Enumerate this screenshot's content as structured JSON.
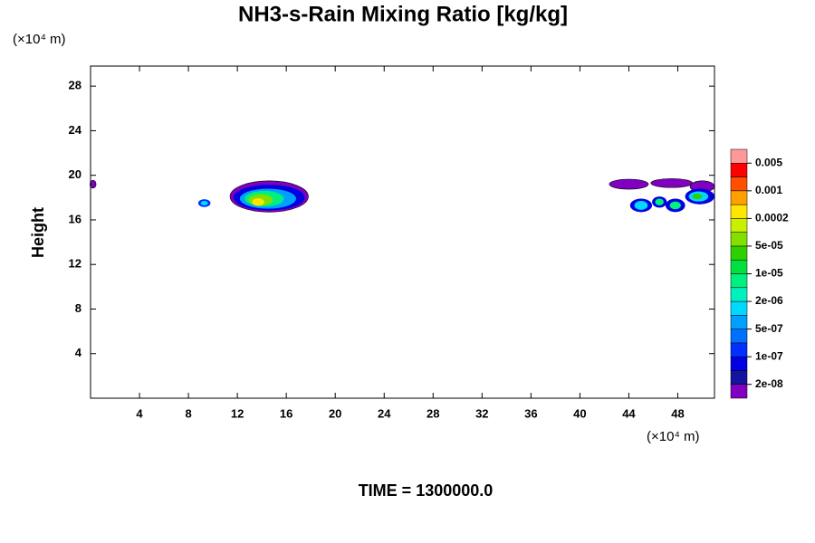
{
  "chart_data": {
    "type": "contour",
    "title": "NH3-s-Rain Mixing Ratio [kg/kg]",
    "y_unit": "(×10⁴ m)",
    "x_unit": "(×10⁴ m)",
    "y_label": "Height",
    "time_label": "TIME = 1300000.0",
    "xlim": [
      0,
      51
    ],
    "ylim": [
      0,
      29.8
    ],
    "xticks": [
      4,
      8,
      12,
      16,
      20,
      24,
      28,
      32,
      36,
      40,
      44,
      48
    ],
    "yticks": [
      4,
      8,
      12,
      16,
      20,
      24,
      28
    ],
    "colorbar": {
      "colors": [
        "#7f00bf",
        "#14149f",
        "#0000e0",
        "#0030ff",
        "#0070ff",
        "#00a0ff",
        "#00d8ff",
        "#00f0c0",
        "#00f080",
        "#00e040",
        "#30d000",
        "#80e000",
        "#c8f000",
        "#ffe600",
        "#ffa000",
        "#ff5000",
        "#ff0000",
        "#ff9999"
      ],
      "ticks": [
        {
          "value": 2e-08,
          "label": "2e-08"
        },
        {
          "value": 1e-07,
          "label": "1e-07"
        },
        {
          "value": 5e-07,
          "label": "5e-07"
        },
        {
          "value": 2e-06,
          "label": "2e-06"
        },
        {
          "value": 1e-05,
          "label": "1e-05"
        },
        {
          "value": 5e-05,
          "label": "5e-05"
        },
        0.0002,
        0.001,
        0.005
      ]
    },
    "features": [
      {
        "x": 0.2,
        "y": 19.2,
        "rx": 0.25,
        "ry": 0.35,
        "color": "#7f00bf"
      },
      {
        "x": 9.3,
        "y": 17.5,
        "rx": 0.5,
        "ry": 0.35,
        "color": "#0030ff"
      },
      {
        "x": 9.3,
        "y": 17.5,
        "rx": 0.3,
        "ry": 0.2,
        "color": "#00d8ff"
      },
      {
        "x": 14.6,
        "y": 18.1,
        "rx": 3.2,
        "ry": 1.4,
        "color": "#7f00bf"
      },
      {
        "x": 14.6,
        "y": 18.0,
        "rx": 2.9,
        "ry": 1.15,
        "color": "#0000e0"
      },
      {
        "x": 14.5,
        "y": 17.9,
        "rx": 2.3,
        "ry": 0.9,
        "color": "#00a0ff"
      },
      {
        "x": 14.2,
        "y": 17.9,
        "rx": 1.6,
        "ry": 0.7,
        "color": "#00f080"
      },
      {
        "x": 13.9,
        "y": 17.8,
        "rx": 1.0,
        "ry": 0.5,
        "color": "#80e000"
      },
      {
        "x": 13.7,
        "y": 17.6,
        "rx": 0.5,
        "ry": 0.35,
        "color": "#ffe600"
      },
      {
        "x": 44.0,
        "y": 19.2,
        "rx": 1.6,
        "ry": 0.45,
        "color": "#7f00bf"
      },
      {
        "x": 47.5,
        "y": 19.3,
        "rx": 1.7,
        "ry": 0.4,
        "color": "#7f00bf"
      },
      {
        "x": 50.0,
        "y": 19.0,
        "rx": 1.0,
        "ry": 0.5,
        "color": "#7f00bf"
      },
      {
        "x": 45.0,
        "y": 17.3,
        "rx": 0.9,
        "ry": 0.6,
        "color": "#0000e0"
      },
      {
        "x": 45.0,
        "y": 17.3,
        "rx": 0.55,
        "ry": 0.4,
        "color": "#00d8ff"
      },
      {
        "x": 46.5,
        "y": 17.6,
        "rx": 0.6,
        "ry": 0.5,
        "color": "#0000e0"
      },
      {
        "x": 46.5,
        "y": 17.6,
        "rx": 0.35,
        "ry": 0.3,
        "color": "#00f080"
      },
      {
        "x": 47.8,
        "y": 17.3,
        "rx": 0.8,
        "ry": 0.6,
        "color": "#0000e0"
      },
      {
        "x": 47.8,
        "y": 17.3,
        "rx": 0.45,
        "ry": 0.35,
        "color": "#00f080"
      },
      {
        "x": 49.8,
        "y": 18.1,
        "rx": 1.2,
        "ry": 0.7,
        "color": "#0000e0"
      },
      {
        "x": 49.7,
        "y": 18.1,
        "rx": 0.8,
        "ry": 0.45,
        "color": "#00d8ff"
      },
      {
        "x": 49.6,
        "y": 18.1,
        "rx": 0.4,
        "ry": 0.25,
        "color": "#30d000"
      }
    ]
  }
}
